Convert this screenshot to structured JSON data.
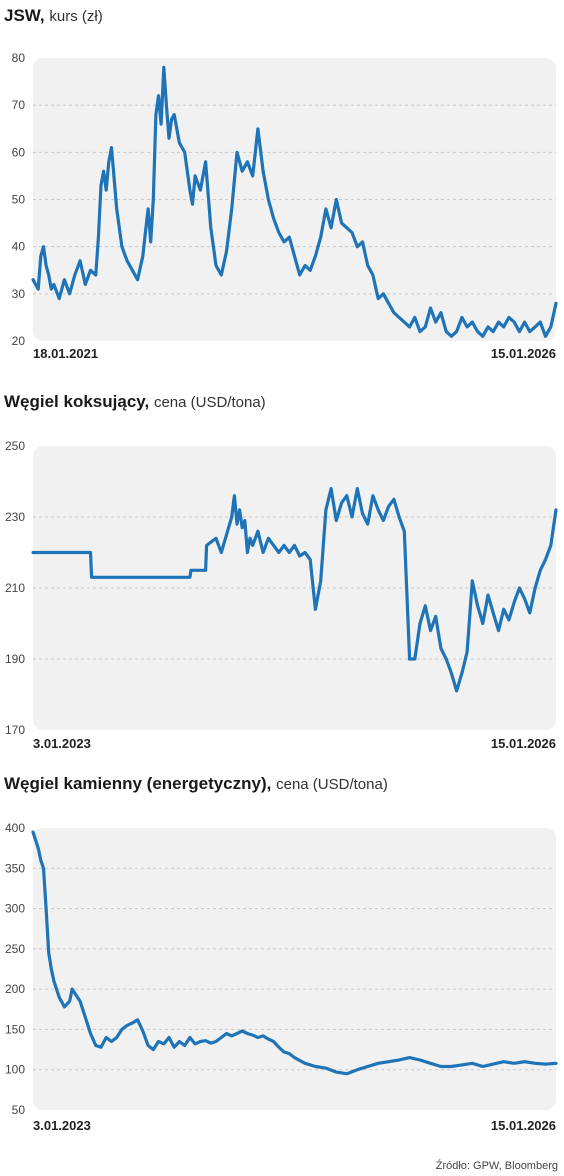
{
  "source": "Źródło: GPW, Bloomberg",
  "colors": {
    "line": "#1f73b7",
    "panel": "#f1f1f1",
    "grid": "#c8c8c8",
    "text": "#444444"
  },
  "chart_data": [
    {
      "type": "line",
      "title_bold": "JSW,",
      "title_rest": "kurs (zł)",
      "x_start": "18.01.2021",
      "x_end": "15.01.2026",
      "ylim": [
        20,
        80
      ],
      "yticks": [
        20,
        30,
        40,
        50,
        60,
        70,
        80
      ],
      "grid": true,
      "x": [
        0,
        0.01,
        0.015,
        0.02,
        0.025,
        0.03,
        0.035,
        0.04,
        0.05,
        0.06,
        0.07,
        0.08,
        0.09,
        0.1,
        0.11,
        0.12,
        0.125,
        0.13,
        0.135,
        0.14,
        0.145,
        0.15,
        0.16,
        0.17,
        0.18,
        0.19,
        0.2,
        0.21,
        0.215,
        0.22,
        0.225,
        0.23,
        0.235,
        0.24,
        0.245,
        0.25,
        0.255,
        0.26,
        0.265,
        0.27,
        0.28,
        0.29,
        0.3,
        0.305,
        0.31,
        0.32,
        0.33,
        0.34,
        0.35,
        0.36,
        0.37,
        0.38,
        0.39,
        0.4,
        0.41,
        0.42,
        0.43,
        0.44,
        0.45,
        0.46,
        0.47,
        0.48,
        0.49,
        0.5,
        0.51,
        0.52,
        0.53,
        0.54,
        0.55,
        0.56,
        0.57,
        0.58,
        0.59,
        0.6,
        0.61,
        0.62,
        0.63,
        0.64,
        0.65,
        0.66,
        0.67,
        0.68,
        0.69,
        0.7,
        0.71,
        0.72,
        0.73,
        0.74,
        0.75,
        0.76,
        0.77,
        0.78,
        0.79,
        0.8,
        0.81,
        0.82,
        0.83,
        0.84,
        0.85,
        0.86,
        0.87,
        0.88,
        0.89,
        0.9,
        0.91,
        0.92,
        0.93,
        0.94,
        0.95,
        0.96,
        0.97,
        0.98,
        0.99,
        1.0
      ],
      "y": [
        33,
        31,
        38,
        40,
        36,
        34,
        31,
        32,
        29,
        33,
        30,
        34,
        37,
        32,
        35,
        34,
        42,
        53,
        56,
        52,
        58,
        61,
        48,
        40,
        37,
        35,
        33,
        38,
        43,
        48,
        41,
        50,
        68,
        72,
        66,
        78,
        70,
        63,
        67,
        68,
        62,
        60,
        52,
        49,
        55,
        52,
        58,
        44,
        36,
        34,
        39,
        48,
        60,
        56,
        58,
        55,
        65,
        56,
        50,
        46,
        43,
        41,
        42,
        38,
        34,
        36,
        35,
        38,
        42,
        48,
        44,
        50,
        45,
        44,
        43,
        40,
        41,
        36,
        34,
        29,
        30,
        28,
        26,
        25,
        24,
        23,
        25,
        22,
        23,
        27,
        24,
        26,
        22,
        21,
        22,
        25,
        23,
        24,
        22,
        21,
        23,
        22,
        24,
        23,
        25,
        24,
        22,
        24,
        22,
        23,
        24,
        21,
        23,
        28
      ]
    },
    {
      "type": "line",
      "title_bold": "Węgiel koksujący,",
      "title_rest": "cena (USD/tona)",
      "x_start": "3.01.2023",
      "x_end": "15.01.2026",
      "ylim": [
        170,
        250
      ],
      "yticks": [
        170,
        190,
        210,
        230,
        250
      ],
      "grid": true,
      "x": [
        0,
        0.11,
        0.112,
        0.3,
        0.302,
        0.33,
        0.332,
        0.35,
        0.36,
        0.37,
        0.38,
        0.385,
        0.39,
        0.395,
        0.4,
        0.405,
        0.41,
        0.415,
        0.42,
        0.43,
        0.44,
        0.45,
        0.46,
        0.47,
        0.48,
        0.49,
        0.5,
        0.51,
        0.52,
        0.53,
        0.54,
        0.55,
        0.56,
        0.57,
        0.58,
        0.59,
        0.6,
        0.61,
        0.62,
        0.63,
        0.64,
        0.65,
        0.66,
        0.67,
        0.68,
        0.69,
        0.7,
        0.71,
        0.72,
        0.73,
        0.74,
        0.75,
        0.76,
        0.77,
        0.78,
        0.79,
        0.8,
        0.81,
        0.82,
        0.83,
        0.84,
        0.85,
        0.86,
        0.87,
        0.88,
        0.89,
        0.9,
        0.91,
        0.92,
        0.93,
        0.94,
        0.95,
        0.96,
        0.97,
        0.98,
        0.99,
        1.0
      ],
      "y": [
        220,
        220,
        213,
        213,
        215,
        215,
        222,
        224,
        220,
        225,
        230,
        236,
        228,
        232,
        227,
        229,
        220,
        224,
        222,
        226,
        220,
        224,
        222,
        220,
        222,
        220,
        222,
        219,
        220,
        218,
        204,
        212,
        232,
        238,
        229,
        234,
        236,
        230,
        238,
        231,
        228,
        236,
        232,
        229,
        233,
        235,
        230,
        226,
        190,
        190,
        200,
        205,
        198,
        202,
        193,
        190,
        186,
        181,
        186,
        192,
        212,
        205,
        200,
        208,
        203,
        198,
        204,
        201,
        206,
        210,
        207,
        203,
        210,
        215,
        218,
        222,
        232
      ]
    },
    {
      "type": "line",
      "title_bold": "Węgiel kamienny (energetyczny),",
      "title_rest": "cena (USD/tona)",
      "x_start": "3.01.2023",
      "x_end": "15.01.2026",
      "ylim": [
        50,
        400
      ],
      "yticks": [
        50,
        100,
        150,
        200,
        250,
        300,
        350,
        400
      ],
      "grid": true,
      "x": [
        0,
        0.01,
        0.015,
        0.02,
        0.025,
        0.03,
        0.035,
        0.04,
        0.05,
        0.06,
        0.07,
        0.075,
        0.08,
        0.09,
        0.1,
        0.11,
        0.12,
        0.13,
        0.14,
        0.15,
        0.16,
        0.17,
        0.18,
        0.19,
        0.2,
        0.21,
        0.22,
        0.23,
        0.24,
        0.25,
        0.26,
        0.27,
        0.28,
        0.29,
        0.3,
        0.31,
        0.32,
        0.33,
        0.34,
        0.35,
        0.36,
        0.37,
        0.38,
        0.39,
        0.4,
        0.41,
        0.42,
        0.43,
        0.44,
        0.45,
        0.46,
        0.47,
        0.48,
        0.49,
        0.5,
        0.52,
        0.54,
        0.56,
        0.58,
        0.6,
        0.62,
        0.64,
        0.66,
        0.68,
        0.7,
        0.72,
        0.74,
        0.76,
        0.78,
        0.8,
        0.82,
        0.84,
        0.86,
        0.88,
        0.9,
        0.92,
        0.94,
        0.96,
        0.98,
        1.0
      ],
      "y": [
        395,
        375,
        360,
        350,
        300,
        245,
        225,
        210,
        190,
        178,
        185,
        200,
        195,
        185,
        165,
        145,
        130,
        128,
        140,
        135,
        140,
        150,
        155,
        158,
        162,
        148,
        130,
        125,
        135,
        132,
        140,
        128,
        135,
        130,
        140,
        132,
        135,
        136,
        133,
        135,
        140,
        145,
        142,
        145,
        148,
        145,
        143,
        140,
        142,
        138,
        135,
        128,
        122,
        120,
        115,
        108,
        104,
        102,
        97,
        95,
        100,
        104,
        108,
        110,
        112,
        115,
        112,
        108,
        104,
        104,
        106,
        108,
        104,
        107,
        110,
        108,
        110,
        108,
        107,
        108
      ]
    }
  ]
}
